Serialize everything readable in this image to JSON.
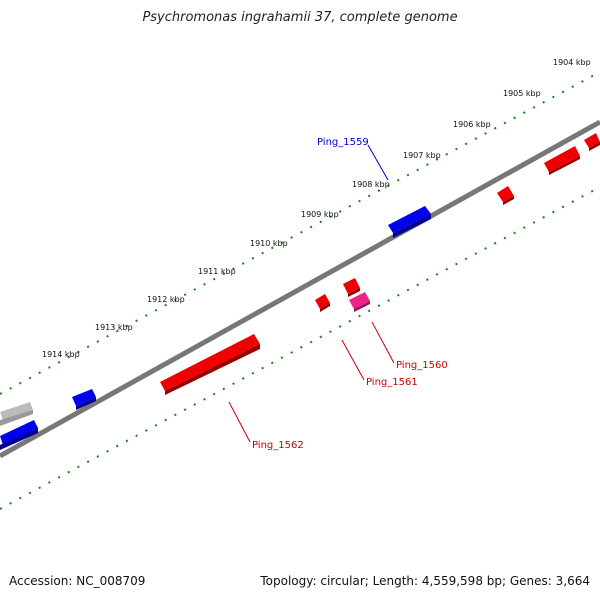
{
  "title": "Psychromonas ingrahamii 37, complete genome",
  "accession": "Accession: NC_008709",
  "summary": "Topology: circular; Length: 4,559,598 bp; Genes: 3,664",
  "ticks": [
    "1904 kbp",
    "1905 kbp",
    "1906 kbp",
    "1907 kbp",
    "1908 kbp",
    "1909 kbp",
    "1910 kbp",
    "1911 kbp",
    "1912 kbp",
    "1913 kbp",
    "1914 kbp"
  ],
  "gene_labels": [
    {
      "name": "Ping_1559",
      "color": "#0000cc"
    },
    {
      "name": "Ping_1560",
      "color": "#cc0000"
    },
    {
      "name": "Ping_1561",
      "color": "#cc0000"
    },
    {
      "name": "Ping_1562",
      "color": "#cc0000"
    }
  ],
  "colors": {
    "forward_gene": "#0000ee",
    "reverse_gene": "#ee0000",
    "highlight_gene": "#ee2288",
    "other_gene": "#bbbbbb",
    "backbone": "#777777",
    "tick_dots": "#118811"
  }
}
